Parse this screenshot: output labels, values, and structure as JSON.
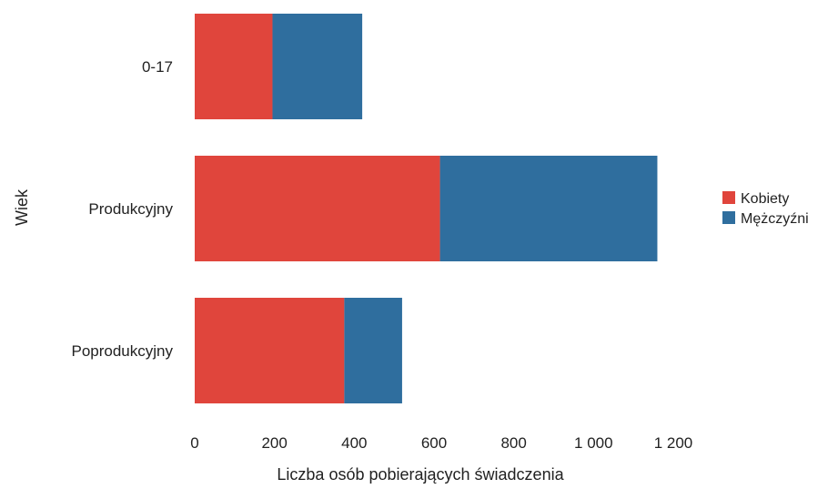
{
  "chart_data": {
    "type": "bar",
    "orientation": "horizontal",
    "stacked": true,
    "categories": [
      "0-17",
      "Produkcyjny",
      "Poprodukcyjny"
    ],
    "series": [
      {
        "name": "Kobiety",
        "color": "#e0453c",
        "values": [
          195,
          615,
          375
        ]
      },
      {
        "name": "Mężczyźni",
        "color": "#2f6e9e",
        "values": [
          225,
          545,
          145
        ]
      }
    ],
    "xlabel": "Liczba osób pobierających świadczenia",
    "ylabel": "Wiek",
    "xlim": [
      0,
      1200
    ],
    "xticks": [
      0,
      200,
      400,
      600,
      800,
      1000,
      1200
    ],
    "xtick_labels": [
      "0",
      "200",
      "400",
      "600",
      "800",
      "1 000",
      "1 200"
    ],
    "grid": false,
    "legend_position": "right"
  }
}
